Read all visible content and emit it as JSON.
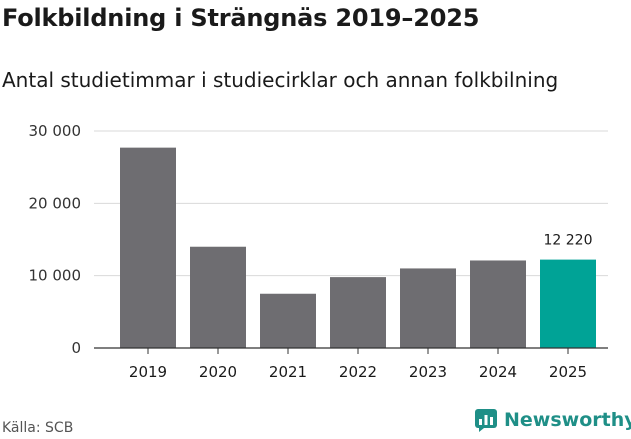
{
  "title": "Folkbildning i Strängnäs 2019–2025",
  "subtitle": "Antal studietimmar i studiecirklar och annan folkbilning",
  "source": "Källa: SCB",
  "brand": {
    "name": "Newsworthy",
    "icon": "newsworthy-logo-icon"
  },
  "colors": {
    "bar": "#6e6d71",
    "highlight": "#00a396",
    "grid": "#d9d9d9",
    "axis": "#333333",
    "brand": "#1f8f87"
  },
  "chart_data": {
    "type": "bar",
    "title": "Folkbildning i Strängnäs 2019–2025",
    "subtitle": "Antal studietimmar i studiecirklar och annan folkbilning",
    "xlabel": "",
    "ylabel": "",
    "categories": [
      "2019",
      "2020",
      "2021",
      "2022",
      "2023",
      "2024",
      "2025"
    ],
    "values": [
      27700,
      14000,
      7500,
      9800,
      11000,
      12100,
      12220
    ],
    "highlight_index": 6,
    "data_labels": [
      {
        "index": 6,
        "text": "12 220"
      }
    ],
    "ylim": [
      0,
      30000
    ],
    "yticks": [
      0,
      10000,
      20000,
      30000
    ],
    "ytick_labels": [
      "0",
      "10 000",
      "20 000",
      "30 000"
    ],
    "grid": true,
    "legend": "none"
  }
}
